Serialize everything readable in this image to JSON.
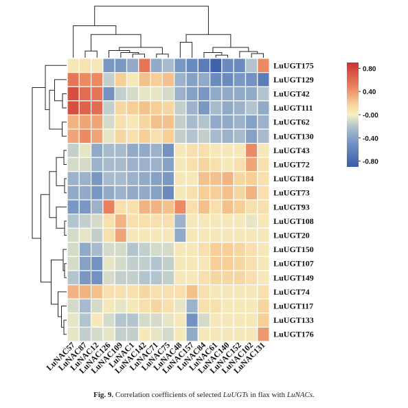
{
  "caption": {
    "label": "Fig. 9.",
    "text_a": "Correlation coefficients of selected",
    "genes_a": "LuUGTs",
    "text_b": "in flax with",
    "genes_b": "LuNACs."
  },
  "chart_data": {
    "type": "heatmap",
    "columns": [
      "LuNAC57",
      "LuNAC87",
      "LuNAC12",
      "LuNAC126",
      "LuNAC109",
      "LuNAC1",
      "LuNAC142",
      "LuNAC71",
      "LuNAC75",
      "LuNAC48",
      "LuNAC157",
      "LuNAC84",
      "LuNAC61",
      "LuNAC140",
      "LuNAC152",
      "LuNAC102",
      "LuNAC131"
    ],
    "rows": [
      "LuUGT175",
      "LuUGT129",
      "LuUGT42",
      "LuUGT111",
      "LuUGT62",
      "LuUGT130",
      "LuUGT43",
      "LuUGT72",
      "LuUGT184",
      "LuUGT73",
      "LuUGT93",
      "LuUGT108",
      "LuUGT20",
      "LuUGT150",
      "LuUGT107",
      "LuUGT149",
      "LuUGT74",
      "LuUGT117",
      "LuUGT133",
      "LuUGT176"
    ],
    "values": [
      [
        0.05,
        0.08,
        0.05,
        -0.45,
        -0.45,
        -0.35,
        0.55,
        -0.35,
        -0.25,
        -0.45,
        -0.55,
        -0.65,
        -0.85,
        -0.55,
        -0.55,
        -0.2,
        0.45
      ],
      [
        0.55,
        0.45,
        0.45,
        -0.15,
        0.2,
        0.05,
        0.25,
        0.2,
        0.25,
        -0.3,
        -0.4,
        -0.35,
        -0.55,
        -0.55,
        -0.45,
        -0.5,
        -0.65
      ],
      [
        0.75,
        0.6,
        0.55,
        -0.5,
        -0.15,
        -0.1,
        -0.05,
        -0.05,
        -0.1,
        -0.3,
        -0.4,
        -0.45,
        -0.35,
        -0.35,
        -0.35,
        -0.35,
        -0.2
      ],
      [
        0.75,
        0.65,
        0.6,
        -0.15,
        0.15,
        0.2,
        0.25,
        0.2,
        0.15,
        -0.15,
        -0.3,
        -0.45,
        -0.25,
        -0.35,
        -0.3,
        -0.2,
        -0.35
      ],
      [
        0.3,
        0.35,
        0.35,
        -0.1,
        0.1,
        0.05,
        0.15,
        0.25,
        0.25,
        -0.15,
        -0.25,
        -0.2,
        -0.35,
        -0.35,
        -0.3,
        -0.4,
        -0.3
      ],
      [
        0.35,
        0.45,
        0.35,
        -0.05,
        0.15,
        0.1,
        0.2,
        0.1,
        0.2,
        -0.15,
        -0.2,
        -0.15,
        -0.25,
        -0.3,
        -0.25,
        -0.4,
        -0.25
      ],
      [
        -0.15,
        -0.05,
        -0.35,
        -0.25,
        -0.25,
        -0.35,
        -0.35,
        -0.3,
        -0.5,
        0.05,
        0.1,
        0.1,
        0.05,
        0.05,
        0.05,
        0.45,
        0.05
      ],
      [
        -0.1,
        -0.1,
        -0.3,
        -0.25,
        -0.25,
        -0.3,
        -0.3,
        -0.3,
        -0.4,
        0.05,
        0.1,
        0.15,
        0.1,
        0.05,
        0.1,
        0.35,
        0.1
      ],
      [
        -0.3,
        -0.3,
        -0.45,
        -0.25,
        -0.25,
        -0.3,
        -0.35,
        -0.4,
        -0.45,
        0.05,
        0.05,
        0.25,
        0.25,
        0.3,
        0.15,
        0.2,
        0.1
      ],
      [
        -0.35,
        -0.35,
        -0.45,
        -0.35,
        -0.3,
        -0.35,
        -0.35,
        -0.4,
        -0.55,
        0.05,
        0.1,
        0.2,
        0.2,
        0.25,
        0.15,
        0.3,
        0.1
      ],
      [
        -0.45,
        -0.45,
        -0.3,
        0.5,
        0.1,
        0.1,
        0.3,
        0.3,
        0.25,
        0.45,
        0.1,
        0.25,
        0.1,
        0.25,
        0.2,
        0.1,
        0.1
      ],
      [
        -0.2,
        -0.15,
        -0.1,
        0.1,
        0.3,
        0.1,
        0.1,
        0.1,
        0.1,
        -0.3,
        0.05,
        0.05,
        0.05,
        0.05,
        0.05,
        -0.05,
        0.05
      ],
      [
        -0.1,
        -0.05,
        -0.15,
        0.1,
        0.35,
        0.05,
        0.05,
        0.05,
        0.05,
        -0.35,
        0.05,
        0.05,
        0.05,
        0.05,
        0.05,
        0.05,
        0.05
      ],
      [
        -0.1,
        -0.35,
        -0.25,
        -0.1,
        -0.1,
        -0.2,
        -0.15,
        -0.1,
        -0.1,
        0.05,
        0.05,
        0.1,
        0.2,
        0.2,
        0.15,
        0.1,
        0.05
      ],
      [
        -0.1,
        -0.4,
        -0.5,
        -0.05,
        -0.1,
        -0.15,
        -0.15,
        -0.2,
        -0.15,
        0.05,
        0.05,
        0.05,
        0.2,
        0.2,
        0.15,
        0.1,
        0.05
      ],
      [
        -0.2,
        -0.45,
        -0.5,
        -0.1,
        -0.15,
        -0.15,
        -0.2,
        -0.2,
        -0.15,
        0.05,
        0.05,
        0.1,
        0.15,
        0.15,
        0.15,
        0.1,
        0.05
      ],
      [
        0.3,
        0.3,
        0.25,
        0.1,
        0.1,
        0.1,
        0.15,
        0.1,
        0.1,
        0.1,
        0.25,
        0.1,
        0.05,
        0.05,
        0.05,
        0.05,
        0.1
      ],
      [
        -0.1,
        -0.25,
        -0.1,
        0.05,
        -0.05,
        0.05,
        0.1,
        0.15,
        0.1,
        -0.05,
        -0.3,
        0.1,
        0.1,
        0.05,
        0.05,
        0.05,
        0.15
      ],
      [
        -0.05,
        -0.2,
        0.05,
        -0.1,
        -0.2,
        -0.2,
        -0.1,
        -0.1,
        -0.05,
        0.05,
        -0.5,
        -0.1,
        0.05,
        0.05,
        0.05,
        0.05,
        0.2
      ],
      [
        -0.05,
        -0.15,
        -0.1,
        -0.05,
        -0.15,
        -0.15,
        0.05,
        -0.05,
        -0.1,
        0.05,
        -0.35,
        0.05,
        0.05,
        0.05,
        0.05,
        0.05,
        0.4
      ]
    ],
    "colorbar": {
      "ticks": [
        0.8,
        0.4,
        0.0,
        -0.4,
        -0.8
      ],
      "tick_labels": [
        "0.80",
        "0.40",
        "-0.00",
        "-0.40",
        "-0.80"
      ],
      "range": [
        -0.9,
        0.9
      ],
      "colors": {
        "low": "#2a4ea3",
        "mid": "#f7f1c4",
        "high": "#c71e22"
      }
    },
    "dendrograms": {
      "rows": true,
      "columns": true
    }
  }
}
